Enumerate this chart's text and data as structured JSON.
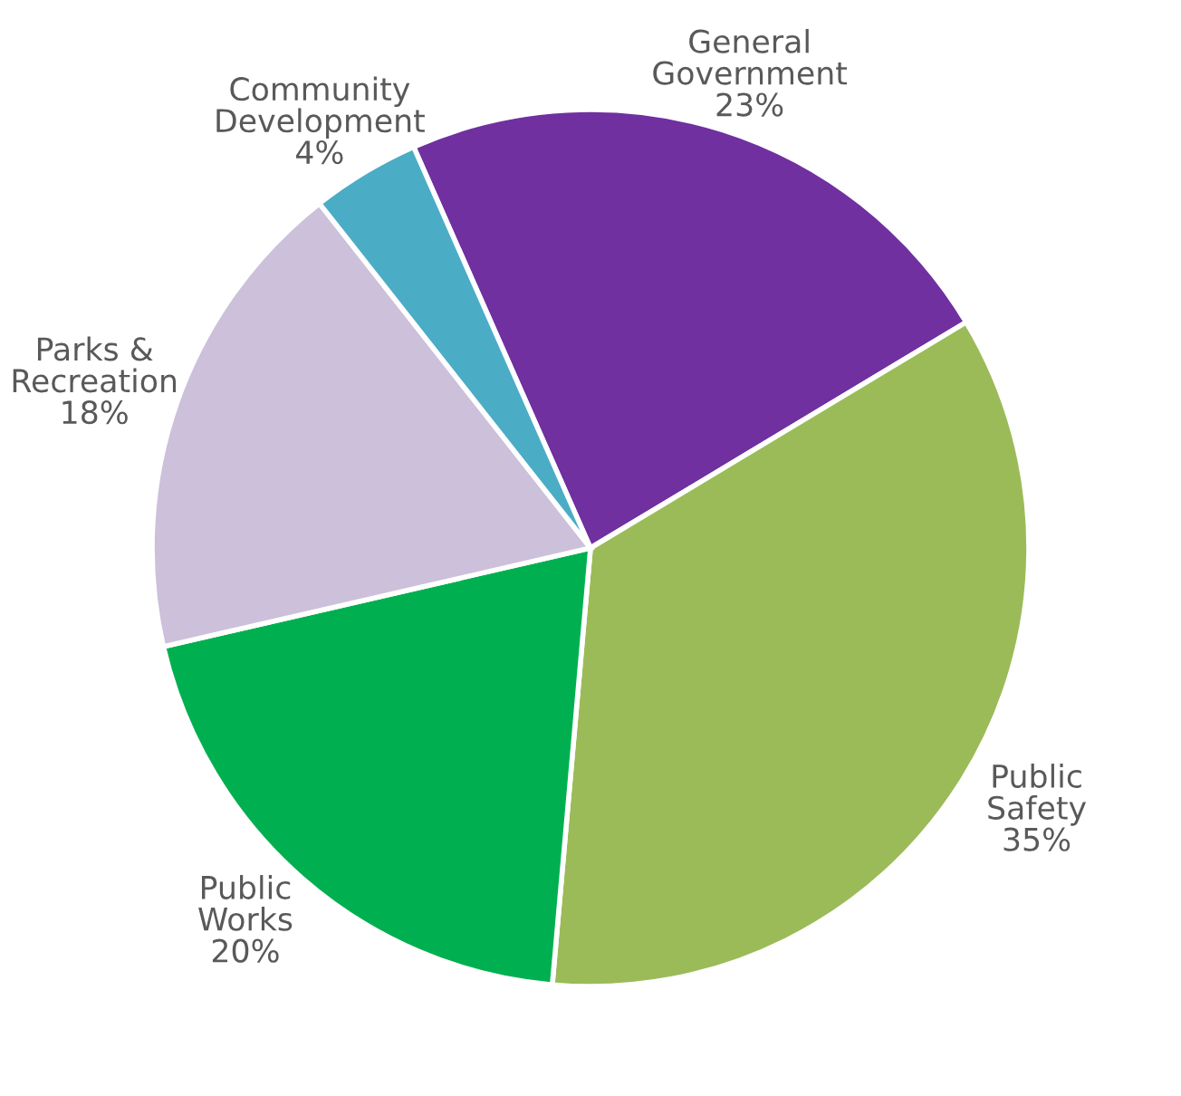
{
  "chart_data": {
    "type": "pie",
    "categories": [
      "General\nGovernment",
      "Public\nSafety",
      "Public\nWorks",
      "Parks &\nRecreation",
      "Community\nDevelopment"
    ],
    "values": [
      23,
      35,
      20,
      18,
      4
    ],
    "value_labels": [
      "23%",
      "35%",
      "20%",
      "18%",
      "4%"
    ],
    "colors": [
      "#7030a0",
      "#9bbb59",
      "#00b050",
      "#ccc0da",
      "#4bacc6"
    ]
  }
}
